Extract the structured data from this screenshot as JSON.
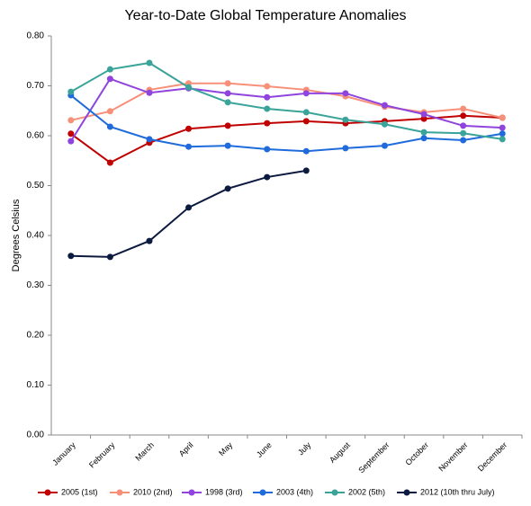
{
  "chart_data": {
    "type": "line",
    "title": "Year-to-Date Global Temperature Anomalies",
    "y_label": "Degrees Celsius",
    "categories": [
      "January",
      "February",
      "March",
      "April",
      "May",
      "June",
      "July",
      "August",
      "September",
      "October",
      "November",
      "December"
    ],
    "ylim": [
      0,
      0.8
    ],
    "yticks": [
      {
        "value": 0,
        "label": "0.00"
      },
      {
        "value": 0.1,
        "label": "0.10"
      },
      {
        "value": 0.2,
        "label": "0.20"
      },
      {
        "value": 0.3,
        "label": "0.30"
      },
      {
        "value": 0.4,
        "label": "0.40"
      },
      {
        "value": 0.5,
        "label": "0.50"
      },
      {
        "value": 0.6,
        "label": "0.60"
      },
      {
        "value": 0.7,
        "label": "0.70"
      },
      {
        "value": 0.8,
        "label": "0.80"
      }
    ],
    "legend": "bottom",
    "series": [
      {
        "name": "2005 (1st)",
        "color": "#c00000",
        "values": [
          0.604,
          0.546,
          0.586,
          0.614,
          0.62,
          0.625,
          0.629,
          0.625,
          0.629,
          0.634,
          0.64,
          0.636
        ]
      },
      {
        "name": "2010 (2nd)",
        "color": "#f79078",
        "values": [
          0.631,
          0.649,
          0.692,
          0.705,
          0.705,
          0.699,
          0.692,
          0.679,
          0.658,
          0.647,
          0.654,
          0.636
        ]
      },
      {
        "name": "1998 (3rd)",
        "color": "#8e44dd",
        "values": [
          0.589,
          0.714,
          0.686,
          0.695,
          0.685,
          0.677,
          0.685,
          0.685,
          0.661,
          0.643,
          0.62,
          0.616
        ]
      },
      {
        "name": "2003 (4th)",
        "color": "#1f6bdc",
        "values": [
          0.681,
          0.618,
          0.593,
          0.578,
          0.58,
          0.573,
          0.569,
          0.575,
          0.58,
          0.595,
          0.591,
          0.604
        ]
      },
      {
        "name": "2002 (5th)",
        "color": "#3aa39a",
        "values": [
          0.688,
          0.733,
          0.746,
          0.697,
          0.667,
          0.654,
          0.647,
          0.632,
          0.623,
          0.607,
          0.605,
          0.593
        ]
      },
      {
        "name": "2012 (10th thru July)",
        "color": "#0d1a40",
        "values": [
          0.359,
          0.357,
          0.389,
          0.456,
          0.494,
          0.517,
          0.53,
          null,
          null,
          null,
          null,
          null
        ]
      }
    ]
  }
}
